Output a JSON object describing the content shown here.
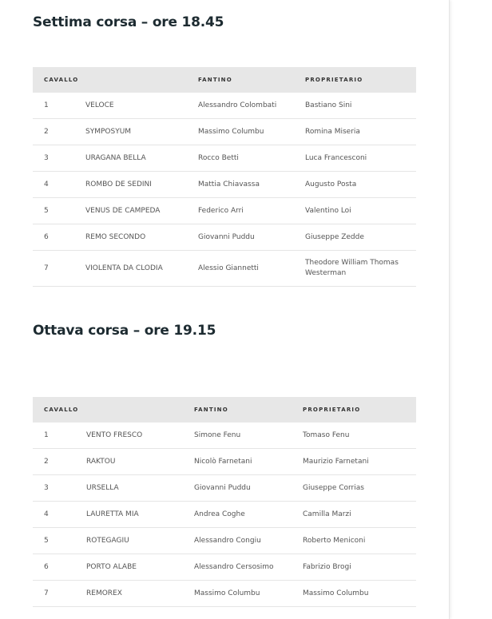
{
  "races": [
    {
      "title": "Settima corsa – ore 18.45",
      "headers": {
        "horse": "CAVALLO",
        "jockey": "FANTINO",
        "owner": "PROPRIETARIO"
      },
      "rows": [
        {
          "num": "1",
          "horse": "VELOCE",
          "jockey": "Alessandro Colombati",
          "owner": "Bastiano Sini"
        },
        {
          "num": "2",
          "horse": "SYMPOSYUM",
          "jockey": "Massimo Columbu",
          "owner": "Romina Miseria"
        },
        {
          "num": "3",
          "horse": "URAGANA BELLA",
          "jockey": "Rocco Betti",
          "owner": "Luca Francesconi"
        },
        {
          "num": "4",
          "horse": "ROMBO DE SEDINI",
          "jockey": "Mattia Chiavassa",
          "owner": "Augusto Posta"
        },
        {
          "num": "5",
          "horse": "VENUS DE CAMPEDA",
          "jockey": "Federico Arri",
          "owner": "Valentino Loi"
        },
        {
          "num": "6",
          "horse": "REMO SECONDO",
          "jockey": "Giovanni Puddu",
          "owner": "Giuseppe Zedde"
        },
        {
          "num": "7",
          "horse": "VIOLENTA DA CLODIA",
          "jockey": "Alessio Giannetti",
          "owner": "Theodore William Thomas Westerman"
        }
      ]
    },
    {
      "title": "Ottava corsa – ore 19.15",
      "headers": {
        "horse": "CAVALLO",
        "jockey": "FANTINO",
        "owner": "PROPRIETARIO"
      },
      "rows": [
        {
          "num": "1",
          "horse": "VENTO FRESCO",
          "jockey": "Simone Fenu",
          "owner": "Tomaso Fenu"
        },
        {
          "num": "2",
          "horse": "RAKTOU",
          "jockey": "Nicolò Farnetani",
          "owner": "Maurizio Farnetani"
        },
        {
          "num": "3",
          "horse": "URSELLA",
          "jockey": "Giovanni Puddu",
          "owner": "Giuseppe Corrias"
        },
        {
          "num": "4",
          "horse": "LAURETTA MIA",
          "jockey": "Andrea Coghe",
          "owner": "Camilla Marzi"
        },
        {
          "num": "5",
          "horse": "ROTEGAGIU",
          "jockey": "Alessandro Congiu",
          "owner": "Roberto Meniconi"
        },
        {
          "num": "6",
          "horse": "PORTO ALABE",
          "jockey": "Alessandro Cersosimo",
          "owner": "Fabrizio Brogi"
        },
        {
          "num": "7",
          "horse": "REMOREX",
          "jockey": "Massimo Columbu",
          "owner": "Massimo Columbu"
        }
      ]
    }
  ]
}
